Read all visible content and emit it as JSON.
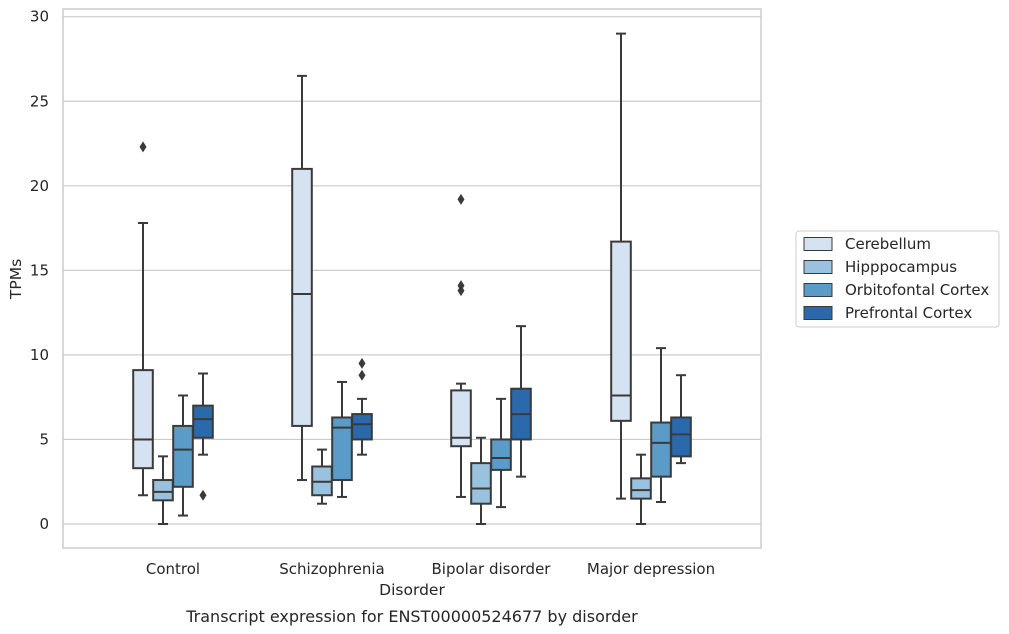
{
  "chart_data": {
    "type": "box",
    "caption": "Transcript expression for ENST00000524677 by disorder",
    "xlabel": "Disorder",
    "ylabel": "TPMs",
    "ylim": [
      -1.3,
      30.4
    ],
    "yticks": [
      0,
      5,
      10,
      15,
      20,
      25,
      30
    ],
    "grid": "horizontal",
    "legend_position": "right",
    "categories": [
      "Control",
      "Schizophrenia",
      "Bipolar disorder",
      "Major depression"
    ],
    "series": [
      {
        "name": "Cerebellum",
        "color": "#d4e2f1",
        "boxes": [
          {
            "whisker_low": 1.7,
            "q1": 3.3,
            "median": 5.0,
            "q3": 9.1,
            "whisker_high": 17.8,
            "outliers": [
              22.3
            ]
          },
          {
            "whisker_low": 2.6,
            "q1": 5.8,
            "median": 13.6,
            "q3": 21.0,
            "whisker_high": 26.5,
            "outliers": []
          },
          {
            "whisker_low": 1.6,
            "q1": 4.6,
            "median": 5.1,
            "q3": 7.9,
            "whisker_high": 8.3,
            "outliers": [
              13.8,
              14.1,
              19.2
            ]
          },
          {
            "whisker_low": 1.5,
            "q1": 6.1,
            "median": 7.6,
            "q3": 16.7,
            "whisker_high": 29.0,
            "outliers": []
          }
        ]
      },
      {
        "name": "Hipppocampus",
        "color": "#9ac1dd",
        "boxes": [
          {
            "whisker_low": 0.0,
            "q1": 1.4,
            "median": 1.9,
            "q3": 2.6,
            "whisker_high": 4.0,
            "outliers": []
          },
          {
            "whisker_low": 1.2,
            "q1": 1.7,
            "median": 2.5,
            "q3": 3.4,
            "whisker_high": 4.4,
            "outliers": []
          },
          {
            "whisker_low": 0.0,
            "q1": 1.2,
            "median": 2.1,
            "q3": 3.6,
            "whisker_high": 5.1,
            "outliers": []
          },
          {
            "whisker_low": 0.0,
            "q1": 1.5,
            "median": 2.0,
            "q3": 2.7,
            "whisker_high": 4.1,
            "outliers": []
          }
        ]
      },
      {
        "name": "Orbitofontal Cortex",
        "color": "#5b9bc8",
        "boxes": [
          {
            "whisker_low": 0.5,
            "q1": 2.2,
            "median": 4.4,
            "q3": 5.8,
            "whisker_high": 7.6,
            "outliers": []
          },
          {
            "whisker_low": 1.6,
            "q1": 2.6,
            "median": 5.7,
            "q3": 6.3,
            "whisker_high": 8.4,
            "outliers": []
          },
          {
            "whisker_low": 1.0,
            "q1": 3.2,
            "median": 3.9,
            "q3": 5.0,
            "whisker_high": 7.4,
            "outliers": []
          },
          {
            "whisker_low": 1.3,
            "q1": 2.8,
            "median": 4.8,
            "q3": 6.0,
            "whisker_high": 10.4,
            "outliers": []
          }
        ]
      },
      {
        "name": "Prefrontal Cortex",
        "color": "#2a6aac",
        "boxes": [
          {
            "whisker_low": 4.1,
            "q1": 5.1,
            "median": 6.2,
            "q3": 7.0,
            "whisker_high": 8.9,
            "outliers": [
              1.7
            ]
          },
          {
            "whisker_low": 4.1,
            "q1": 5.0,
            "median": 5.9,
            "q3": 6.5,
            "whisker_high": 7.4,
            "outliers": [
              8.8,
              9.5
            ]
          },
          {
            "whisker_low": 2.8,
            "q1": 5.0,
            "median": 6.5,
            "q3": 8.0,
            "whisker_high": 11.7,
            "outliers": []
          },
          {
            "whisker_low": 3.6,
            "q1": 4.0,
            "median": 5.3,
            "q3": 6.3,
            "whisker_high": 8.8,
            "outliers": []
          }
        ]
      }
    ]
  }
}
